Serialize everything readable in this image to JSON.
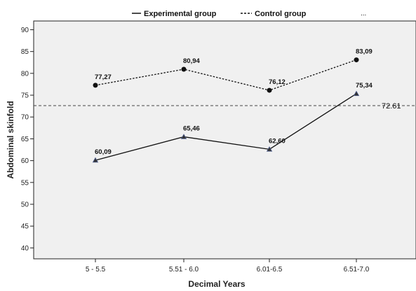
{
  "chart_data": {
    "type": "line",
    "categories": [
      "5 - 5.5",
      "5.51 - 6.0",
      "6.01-6.5",
      "6.51-7.0"
    ],
    "series": [
      {
        "name": "Experimental group",
        "style": "solid",
        "values": [
          60.09,
          65.46,
          62.6,
          75.34
        ],
        "value_labels": [
          "60,09",
          "65,46",
          "62,60",
          "75,34"
        ],
        "marker": "triangle"
      },
      {
        "name": "Control group",
        "style": "dotted",
        "values": [
          77.27,
          80.94,
          76.12,
          83.09
        ],
        "value_labels": [
          "77,27",
          "80,94",
          "76,12",
          "83,09"
        ],
        "marker": "circle"
      }
    ],
    "legend_extra": "...",
    "reference_line": {
      "value": 72.61,
      "label": "72.61",
      "style": "dashed"
    },
    "xlabel": "Decimal Years",
    "ylabel": "Abdominal skinfold",
    "ylim": [
      37.5,
      92
    ],
    "yticks": [
      40,
      45,
      50,
      55,
      60,
      65,
      70,
      75,
      80,
      85,
      90
    ],
    "grid": false,
    "legend_position": "top",
    "colors": {
      "background": "#f0f0f0",
      "line": "#111111",
      "frame": "#222222"
    }
  }
}
